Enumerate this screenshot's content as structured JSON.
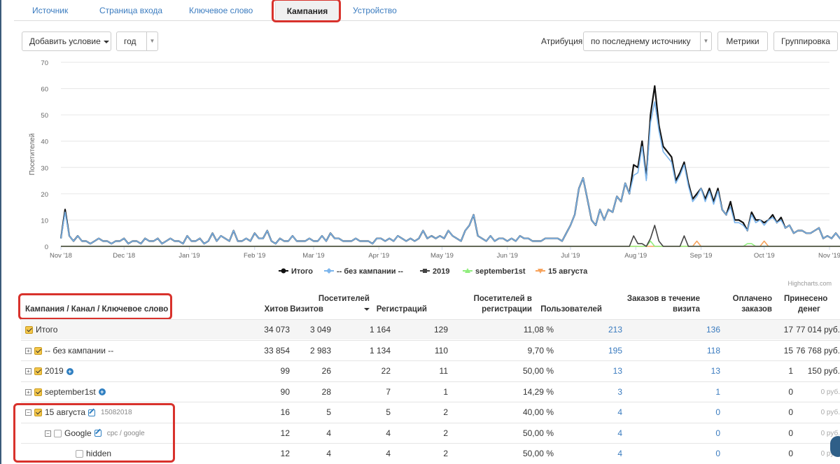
{
  "tabs": [
    {
      "label": "Источник",
      "active": false
    },
    {
      "label": "Страница входа",
      "active": false
    },
    {
      "label": "Ключевое слово",
      "active": false
    },
    {
      "label": "Кампания",
      "active": true
    },
    {
      "label": "Устройство",
      "active": false
    }
  ],
  "toolbar": {
    "add_condition": "Добавить условие",
    "period": "год",
    "attribution_label": "Атрибуция",
    "attribution_value": "по последнему источнику",
    "metrics": "Метрики",
    "grouping": "Группировка"
  },
  "chart_data": {
    "type": "line",
    "ylabel": "Посетителей",
    "ylim": [
      0,
      70
    ],
    "yticks": [
      0,
      10,
      20,
      30,
      40,
      50,
      60,
      70
    ],
    "xticks": [
      "Nov '18",
      "Dec '18",
      "Jan '19",
      "Feb '19",
      "Mar '19",
      "Apr '19",
      "May '19",
      "Jun '19",
      "Jul '19",
      "Aug '19",
      "Sep '19",
      "Oct '19",
      "Nov '19"
    ],
    "x_start": "2018-11-01",
    "x_end": "2019-11-01",
    "x_step_days": 2,
    "series": [
      {
        "name": "Итого",
        "color": "#111111",
        "marker": "circle",
        "values": [
          3,
          14,
          4,
          2,
          4,
          2,
          2,
          1,
          2,
          3,
          2,
          2,
          1,
          2,
          2,
          3,
          1,
          2,
          2,
          1,
          3,
          2,
          2,
          3,
          1,
          2,
          3,
          2,
          2,
          1,
          4,
          2,
          2,
          3,
          1,
          2,
          5,
          2,
          4,
          3,
          2,
          6,
          2,
          2,
          3,
          2,
          5,
          3,
          3,
          6,
          2,
          1,
          3,
          2,
          2,
          4,
          2,
          2,
          2,
          3,
          2,
          2,
          4,
          2,
          5,
          3,
          3,
          2,
          2,
          2,
          3,
          2,
          2,
          2,
          1,
          3,
          3,
          2,
          3,
          2,
          4,
          3,
          2,
          3,
          2,
          3,
          6,
          3,
          4,
          3,
          4,
          3,
          6,
          4,
          3,
          2,
          6,
          8,
          12,
          4,
          3,
          2,
          4,
          2,
          3,
          3,
          2,
          3,
          2,
          4,
          3,
          3,
          2,
          2,
          2,
          3,
          3,
          3,
          3,
          2,
          5,
          8,
          12,
          22,
          26,
          18,
          10,
          8,
          14,
          10,
          14,
          13,
          19,
          17,
          24,
          20,
          31,
          30,
          40,
          26,
          50,
          61,
          46,
          38,
          36,
          34,
          25,
          28,
          32,
          24,
          18,
          20,
          22,
          18,
          22,
          17,
          22,
          14,
          12,
          17,
          10,
          10,
          9,
          6,
          13,
          10,
          10,
          9,
          10,
          12,
          9,
          11,
          7,
          8,
          5,
          6,
          6,
          5,
          5,
          6,
          7,
          3,
          4,
          3,
          5,
          3,
          4,
          5,
          4,
          4,
          3,
          5,
          4,
          2,
          4,
          3,
          4,
          3,
          2,
          3,
          1
        ]
      },
      {
        "name": "-- без кампании --",
        "color": "#7cb5ec",
        "marker": "diamond",
        "values": [
          3,
          13,
          4,
          2,
          4,
          2,
          2,
          1,
          2,
          3,
          2,
          2,
          1,
          2,
          2,
          3,
          1,
          2,
          2,
          1,
          3,
          2,
          2,
          3,
          1,
          2,
          3,
          2,
          2,
          1,
          4,
          2,
          2,
          3,
          1,
          2,
          5,
          2,
          4,
          3,
          2,
          6,
          2,
          2,
          3,
          2,
          5,
          3,
          3,
          6,
          2,
          1,
          3,
          2,
          2,
          4,
          2,
          2,
          2,
          3,
          2,
          2,
          4,
          2,
          5,
          3,
          3,
          2,
          2,
          2,
          3,
          2,
          2,
          2,
          1,
          3,
          3,
          2,
          3,
          2,
          4,
          3,
          2,
          3,
          2,
          3,
          6,
          3,
          4,
          3,
          4,
          3,
          6,
          4,
          3,
          2,
          6,
          8,
          12,
          4,
          3,
          2,
          4,
          2,
          3,
          3,
          2,
          3,
          2,
          4,
          3,
          3,
          2,
          2,
          2,
          3,
          3,
          3,
          3,
          2,
          5,
          8,
          12,
          22,
          26,
          18,
          10,
          8,
          14,
          10,
          14,
          13,
          19,
          17,
          24,
          20,
          27,
          28,
          38,
          25,
          47,
          55,
          44,
          36,
          34,
          32,
          24,
          27,
          31,
          23,
          17,
          19,
          22,
          17,
          21,
          16,
          21,
          14,
          12,
          15,
          9,
          9,
          8,
          6,
          12,
          9,
          10,
          8,
          10,
          11,
          9,
          10,
          7,
          8,
          5,
          6,
          6,
          5,
          5,
          6,
          7,
          3,
          4,
          3,
          5,
          3,
          4,
          5,
          4,
          4,
          3,
          5,
          4,
          2,
          4,
          3,
          4,
          3,
          2,
          3,
          1
        ]
      },
      {
        "name": "2019",
        "color": "#444444",
        "marker": "square",
        "values": [
          0,
          0,
          0,
          0,
          0,
          0,
          0,
          0,
          0,
          0,
          0,
          0,
          0,
          0,
          0,
          0,
          0,
          0,
          0,
          0,
          0,
          0,
          0,
          0,
          0,
          0,
          0,
          0,
          0,
          0,
          0,
          0,
          0,
          0,
          0,
          0,
          0,
          0,
          0,
          0,
          0,
          0,
          0,
          0,
          0,
          0,
          0,
          0,
          0,
          0,
          0,
          0,
          0,
          0,
          0,
          0,
          0,
          0,
          0,
          0,
          0,
          0,
          0,
          0,
          0,
          0,
          0,
          0,
          0,
          0,
          0,
          0,
          0,
          0,
          0,
          0,
          0,
          0,
          0,
          0,
          0,
          0,
          0,
          0,
          0,
          0,
          0,
          0,
          0,
          0,
          0,
          0,
          0,
          0,
          0,
          0,
          0,
          0,
          0,
          0,
          0,
          0,
          0,
          0,
          0,
          0,
          0,
          0,
          0,
          0,
          0,
          0,
          0,
          0,
          0,
          0,
          0,
          0,
          0,
          0,
          0,
          0,
          0,
          0,
          0,
          0,
          0,
          0,
          0,
          0,
          0,
          0,
          0,
          0,
          0,
          0,
          4,
          1,
          1,
          0,
          3,
          8,
          2,
          0,
          0,
          0,
          0,
          0,
          4,
          0,
          0,
          0,
          0,
          0,
          0,
          0,
          0,
          0,
          0,
          0,
          0,
          0,
          0,
          0,
          0,
          0,
          0,
          0,
          0,
          0,
          0,
          0,
          0,
          0,
          0,
          0,
          0,
          0,
          0,
          0,
          0,
          0,
          0,
          0,
          0,
          0,
          0,
          0,
          0,
          0,
          0,
          0,
          0,
          0,
          0,
          0,
          0,
          0,
          0,
          0,
          0
        ]
      },
      {
        "name": "september1st",
        "color": "#90ed7d",
        "marker": "triangle",
        "values": [
          0,
          0,
          0,
          0,
          0,
          0,
          0,
          0,
          0,
          0,
          0,
          0,
          0,
          0,
          0,
          0,
          0,
          0,
          0,
          0,
          0,
          0,
          0,
          0,
          0,
          0,
          0,
          0,
          0,
          0,
          0,
          0,
          0,
          0,
          0,
          0,
          0,
          0,
          0,
          0,
          0,
          0,
          0,
          0,
          0,
          0,
          0,
          0,
          0,
          0,
          0,
          0,
          0,
          0,
          0,
          0,
          0,
          0,
          0,
          0,
          0,
          0,
          0,
          0,
          0,
          0,
          0,
          0,
          0,
          0,
          0,
          0,
          0,
          0,
          0,
          0,
          0,
          0,
          0,
          0,
          0,
          0,
          0,
          0,
          0,
          0,
          0,
          0,
          0,
          0,
          0,
          0,
          0,
          0,
          0,
          0,
          0,
          0,
          0,
          0,
          0,
          0,
          0,
          0,
          0,
          0,
          0,
          0,
          0,
          0,
          0,
          0,
          0,
          0,
          0,
          0,
          0,
          0,
          0,
          0,
          0,
          0,
          0,
          0,
          0,
          0,
          0,
          0,
          0,
          0,
          0,
          0,
          0,
          0,
          0,
          0,
          0,
          0,
          0,
          0,
          2,
          0,
          0,
          0,
          0,
          0,
          0,
          0,
          0,
          0,
          0,
          0,
          0,
          0,
          0,
          0,
          0,
          0,
          0,
          0,
          0,
          0,
          0,
          1,
          1,
          0,
          0,
          0,
          0,
          0,
          0,
          0,
          0,
          0,
          0,
          0,
          0,
          0,
          0,
          0,
          0,
          0,
          0,
          0,
          0,
          0,
          0,
          0,
          0,
          0,
          0,
          0,
          0,
          0,
          0,
          0,
          0,
          0,
          0,
          0,
          0
        ]
      },
      {
        "name": "15 августа",
        "color": "#f7a35c",
        "marker": "triangle-down",
        "values": [
          0,
          0,
          0,
          0,
          0,
          0,
          0,
          0,
          0,
          0,
          0,
          0,
          0,
          0,
          0,
          0,
          0,
          0,
          0,
          0,
          0,
          0,
          0,
          0,
          0,
          0,
          0,
          0,
          0,
          0,
          0,
          0,
          0,
          0,
          0,
          0,
          0,
          0,
          0,
          0,
          0,
          0,
          0,
          0,
          0,
          0,
          0,
          0,
          0,
          0,
          0,
          0,
          0,
          0,
          0,
          0,
          0,
          0,
          0,
          0,
          0,
          0,
          0,
          0,
          0,
          0,
          0,
          0,
          0,
          0,
          0,
          0,
          0,
          0,
          0,
          0,
          0,
          0,
          0,
          0,
          0,
          0,
          0,
          0,
          0,
          0,
          0,
          0,
          0,
          0,
          0,
          0,
          0,
          0,
          0,
          0,
          0,
          0,
          0,
          0,
          0,
          0,
          0,
          0,
          0,
          0,
          0,
          0,
          0,
          0,
          0,
          0,
          0,
          0,
          0,
          0,
          0,
          0,
          0,
          0,
          0,
          0,
          0,
          0,
          0,
          0,
          0,
          0,
          0,
          0,
          0,
          0,
          0,
          0,
          0,
          0,
          0,
          0,
          0,
          0,
          0,
          0,
          0,
          0,
          0,
          0,
          0,
          0,
          0,
          0,
          0,
          2,
          0,
          0,
          0,
          0,
          0,
          0,
          0,
          0,
          0,
          0,
          0,
          0,
          0,
          0,
          0,
          2,
          0,
          0,
          0,
          0,
          0,
          0,
          0,
          0,
          0,
          0,
          0,
          0,
          0,
          0,
          0,
          0,
          0,
          0,
          0,
          0,
          0,
          0,
          0,
          0,
          0,
          0,
          0,
          0,
          0,
          0,
          0,
          0,
          0
        ]
      }
    ],
    "legend_position": "bottom-center",
    "credits": "Highcharts.com"
  },
  "table": {
    "columns": [
      "Кампания / Канал / Ключевое слово",
      "Хитов",
      "Визитов",
      "Посетителей",
      "Регистраций",
      "Посетителей в регистрации",
      "Пользователей",
      "Заказов в течение визита",
      "Оплачено заказов",
      "Принесено денег"
    ],
    "header_lines": {
      "visitors": [
        "Посетителей",
        ""
      ],
      "reg_visitors": [
        "Посетителей в",
        "регистрации"
      ],
      "orders": [
        "Заказов в течение",
        "визита"
      ],
      "paid": [
        "Оплачено",
        "заказов"
      ],
      "money": [
        "Принесено",
        "денег"
      ]
    },
    "rows": [
      {
        "name": "Итого",
        "tag": "",
        "hits": "34 073",
        "visits": "3 049",
        "visitors": "1 164",
        "regs": "129",
        "conv": "11,08 %",
        "users": "213",
        "orders": "136",
        "paid": "17",
        "money": "77 014 руб."
      },
      {
        "name": "-- без кампании --",
        "tag": "",
        "hits": "33 854",
        "visits": "2 983",
        "visitors": "1 134",
        "regs": "110",
        "conv": "9,70 %",
        "users": "195",
        "orders": "118",
        "paid": "15",
        "money": "76 768 руб."
      },
      {
        "name": "2019",
        "tag": "",
        "hits": "99",
        "visits": "26",
        "visitors": "22",
        "regs": "11",
        "conv": "50,00 %",
        "users": "13",
        "orders": "13",
        "paid": "1",
        "money": "150 руб."
      },
      {
        "name": "september1st",
        "tag": "",
        "hits": "90",
        "visits": "28",
        "visitors": "7",
        "regs": "1",
        "conv": "14,29 %",
        "users": "3",
        "orders": "1",
        "paid": "0",
        "money": "0 руб."
      },
      {
        "name": "15 августа",
        "tag": "15082018",
        "hits": "16",
        "visits": "5",
        "visitors": "5",
        "regs": "2",
        "conv": "40,00 %",
        "users": "4",
        "orders": "0",
        "paid": "0",
        "money": "0 руб."
      },
      {
        "name": "Google",
        "tag": "cpc / google",
        "hits": "12",
        "visits": "4",
        "visitors": "4",
        "regs": "2",
        "conv": "50,00 %",
        "users": "4",
        "orders": "0",
        "paid": "0",
        "money": "0 руб."
      },
      {
        "name": "hidden",
        "tag": "",
        "hits": "12",
        "visits": "4",
        "visitors": "4",
        "regs": "2",
        "conv": "50,00 %",
        "users": "4",
        "orders": "0",
        "paid": "0",
        "money": "0 руб."
      }
    ]
  },
  "colors": {
    "accent": "#3a7bbf",
    "highlight": "#d8322c"
  }
}
